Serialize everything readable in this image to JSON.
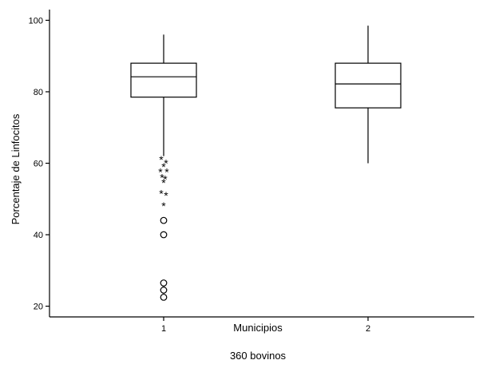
{
  "chart_data": {
    "type": "boxplot",
    "title": "",
    "caption": "360 bovinos",
    "xlabel": "Municipios",
    "ylabel": "Porcentaje de Linfocitos",
    "ylim": [
      17,
      103
    ],
    "yticks": [
      20,
      40,
      60,
      80,
      100
    ],
    "categories": [
      "1",
      "2"
    ],
    "grid": false,
    "boxes": [
      {
        "category": "1",
        "whisker_low": 62,
        "q1": 78.5,
        "median": 84.2,
        "q3": 88,
        "whisker_high": 96,
        "outliers_star": [
          61,
          60,
          59,
          57.5,
          57.5,
          56,
          55.5,
          54.5,
          51.5,
          51,
          48
        ],
        "outliers_circle": [
          44,
          40,
          26.5,
          24.5,
          22.5
        ]
      },
      {
        "category": "2",
        "whisker_low": 60,
        "q1": 75.5,
        "median": 82.2,
        "q3": 88,
        "whisker_high": 98.5,
        "outliers_star": [],
        "outliers_circle": []
      }
    ]
  }
}
